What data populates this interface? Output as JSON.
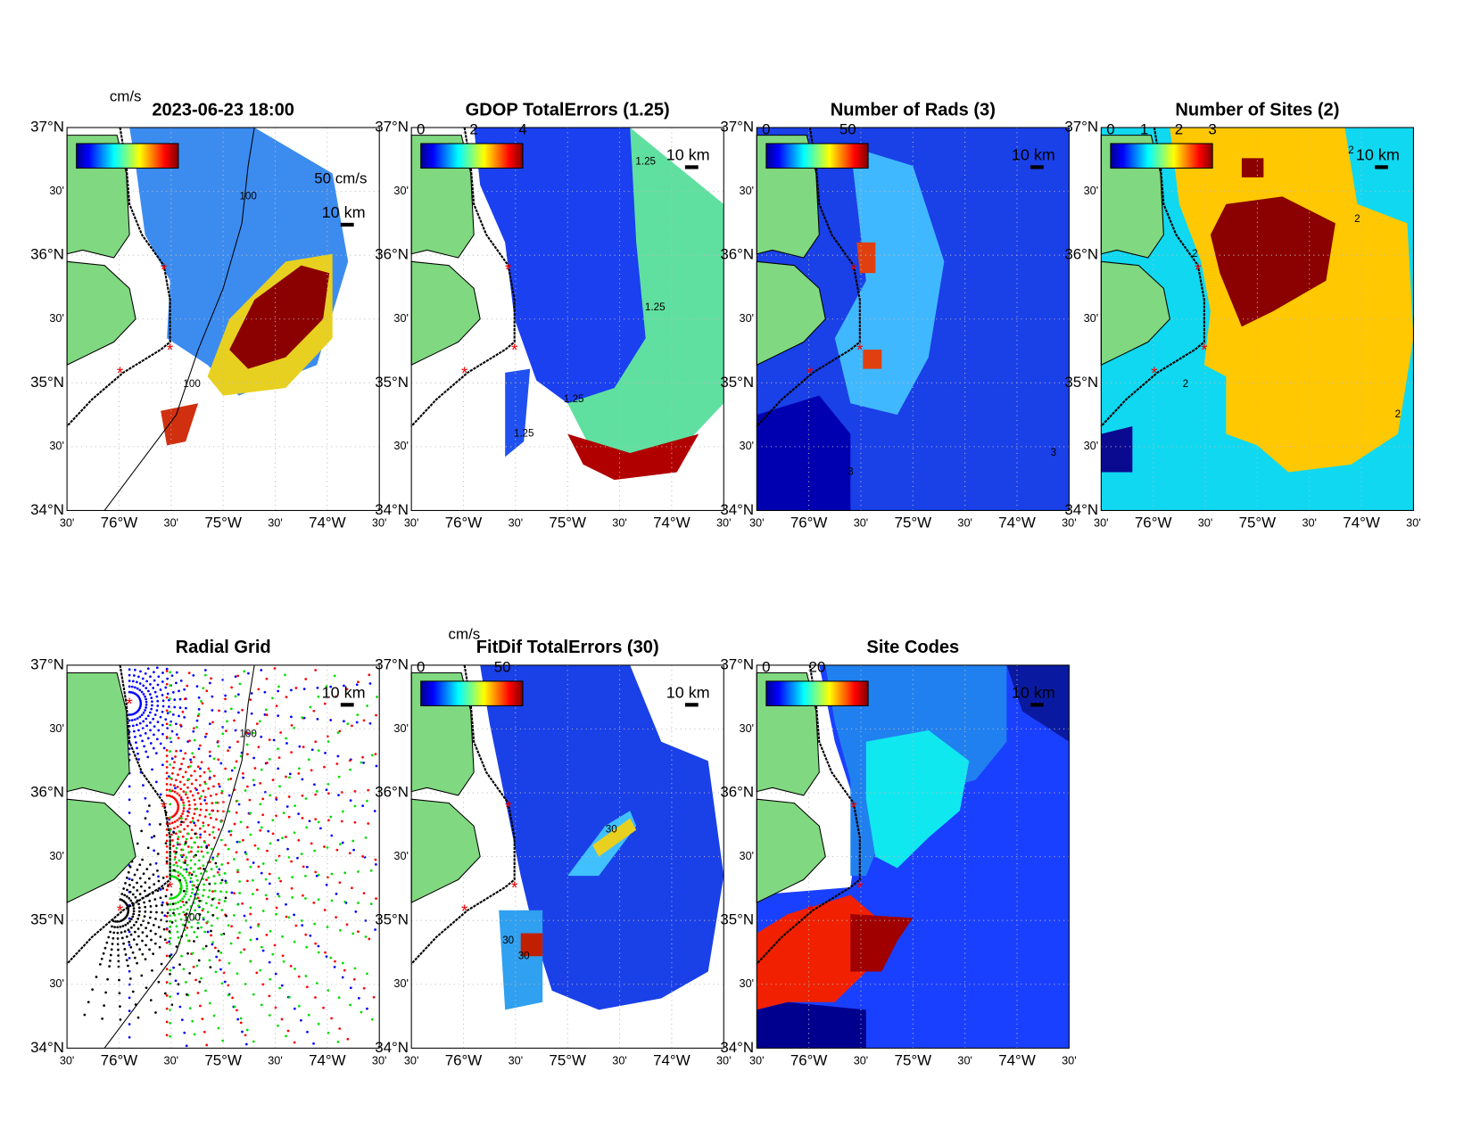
{
  "lat_labels": [
    "37°N",
    "30'",
    "36°N",
    "30'",
    "35°N",
    "30'",
    "34°N"
  ],
  "lon_labels": [
    "30'",
    "76°W",
    "30'",
    "75°W",
    "30'",
    "74°W",
    "30'"
  ],
  "panels": [
    {
      "title": "2023-06-23 18:00",
      "units": "cm/s",
      "vector_scale": "50 cm/s",
      "scale_label": "10 km",
      "colorbar_ticks": [],
      "contour_labels": [
        "100",
        "100"
      ]
    },
    {
      "title": "GDOP TotalErrors (1.25)",
      "scale_label": "10 km",
      "colorbar_ticks": [
        0,
        2,
        4
      ],
      "contour_labels": [
        "1.25",
        "1.25",
        "1.25",
        "1.25"
      ]
    },
    {
      "title": "Number of Rads (3)",
      "scale_label": "10 km",
      "colorbar_ticks": [
        0,
        50
      ],
      "contour_labels": [
        "3",
        "3"
      ]
    },
    {
      "title": "Number of Sites (2)",
      "scale_label": "10 km",
      "colorbar_ticks": [
        0,
        1,
        2,
        3
      ],
      "contour_labels": [
        "2",
        "2",
        "2",
        "2",
        "2"
      ]
    },
    {
      "title": "Radial Grid",
      "scale_label": "10 km",
      "colorbar_ticks": [],
      "contour_labels": [
        "100",
        "100"
      ]
    },
    {
      "title": "FitDif TotalErrors (30)",
      "units": "cm/s",
      "scale_label": "10 km",
      "colorbar_ticks": [
        0,
        50
      ],
      "contour_labels": [
        "30",
        "30",
        "30"
      ]
    },
    {
      "title": "Site Codes",
      "scale_label": "10 km",
      "colorbar_ticks": [
        0,
        20
      ],
      "contour_labels": []
    }
  ]
}
